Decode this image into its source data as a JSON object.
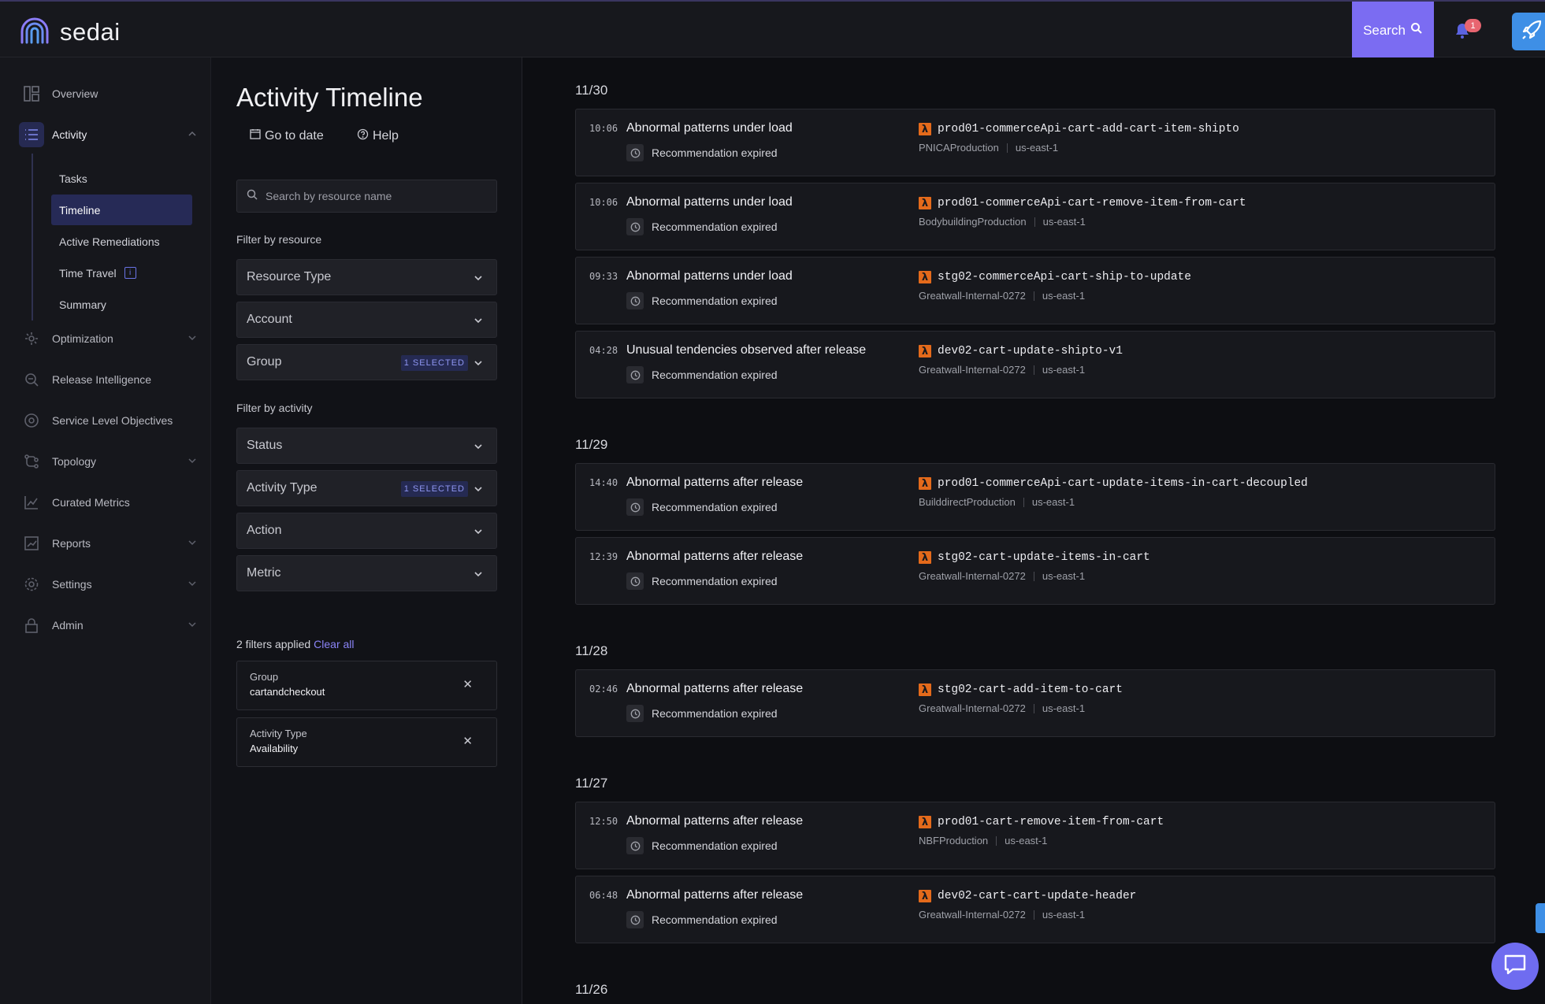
{
  "app": {
    "logo_text": "sedai"
  },
  "topbar": {
    "search_label": "Search",
    "notification_count": "1"
  },
  "sidebar": {
    "items": [
      {
        "label": "Overview",
        "icon": "dashboard-icon"
      },
      {
        "label": "Activity",
        "icon": "list-icon",
        "active": true,
        "expanded": true
      },
      {
        "label": "Optimization",
        "icon": "optimization-icon"
      },
      {
        "label": "Release Intelligence",
        "icon": "release-intelligence-icon"
      },
      {
        "label": "Service Level Objectives",
        "icon": "slo-icon"
      },
      {
        "label": "Topology",
        "icon": "topology-icon"
      },
      {
        "label": "Curated Metrics",
        "icon": "chart-icon"
      },
      {
        "label": "Reports",
        "icon": "reports-icon"
      },
      {
        "label": "Settings",
        "icon": "gear-icon"
      },
      {
        "label": "Admin",
        "icon": "lock-icon"
      }
    ],
    "sub_items": [
      {
        "label": "Tasks"
      },
      {
        "label": "Timeline",
        "active": true
      },
      {
        "label": "Active Remediations"
      },
      {
        "label": "Time Travel",
        "info_icon": true
      },
      {
        "label": "Summary"
      }
    ]
  },
  "filter_panel": {
    "title": "Activity Timeline",
    "go_to_date": "Go to date",
    "help": "Help",
    "search_placeholder": "Search by resource name",
    "filter_by_resource": "Filter by resource",
    "filter_by_activity": "Filter by activity",
    "resource_filters": [
      {
        "label": "Resource Type",
        "badge": ""
      },
      {
        "label": "Account",
        "badge": ""
      },
      {
        "label": "Group",
        "badge": "1 SELECTED"
      }
    ],
    "activity_filters": [
      {
        "label": "Status",
        "badge": ""
      },
      {
        "label": "Activity Type",
        "badge": "1 SELECTED"
      },
      {
        "label": "Action",
        "badge": ""
      },
      {
        "label": "Metric",
        "badge": ""
      }
    ],
    "applied_text": "2 filters applied",
    "clear_all": "Clear all",
    "chips": [
      {
        "key": "Group",
        "value": "cartandcheckout"
      },
      {
        "key": "Activity Type",
        "value": "Availability"
      }
    ]
  },
  "timeline": {
    "groups": [
      {
        "date": "11/30",
        "events": [
          {
            "time": "10:06",
            "title": "Abnormal patterns under load",
            "status": "Recommendation expired",
            "resource": "prod01-commerceApi-cart-add-cart-item-shipto",
            "account": "PNICAProduction",
            "region": "us-east-1"
          },
          {
            "time": "10:06",
            "title": "Abnormal patterns under load",
            "status": "Recommendation expired",
            "resource": "prod01-commerceApi-cart-remove-item-from-cart",
            "account": "BodybuildingProduction",
            "region": "us-east-1"
          },
          {
            "time": "09:33",
            "title": "Abnormal patterns under load",
            "status": "Recommendation expired",
            "resource": "stg02-commerceApi-cart-ship-to-update",
            "account": "Greatwall-Internal-0272",
            "region": "us-east-1"
          },
          {
            "time": "04:28",
            "title": "Unusual tendencies observed after release",
            "status": "Recommendation expired",
            "resource": "dev02-cart-update-shipto-v1",
            "account": "Greatwall-Internal-0272",
            "region": "us-east-1"
          }
        ]
      },
      {
        "date": "11/29",
        "events": [
          {
            "time": "14:40",
            "title": "Abnormal patterns after release",
            "status": "Recommendation expired",
            "resource": "prod01-commerceApi-cart-update-items-in-cart-decoupled",
            "account": "BuilddirectProduction",
            "region": "us-east-1"
          },
          {
            "time": "12:39",
            "title": "Abnormal patterns after release",
            "status": "Recommendation expired",
            "resource": "stg02-cart-update-items-in-cart",
            "account": "Greatwall-Internal-0272",
            "region": "us-east-1"
          }
        ]
      },
      {
        "date": "11/28",
        "events": [
          {
            "time": "02:46",
            "title": "Abnormal patterns after release",
            "status": "Recommendation expired",
            "resource": "stg02-cart-add-item-to-cart",
            "account": "Greatwall-Internal-0272",
            "region": "us-east-1"
          }
        ]
      },
      {
        "date": "11/27",
        "events": [
          {
            "time": "12:50",
            "title": "Abnormal patterns after release",
            "status": "Recommendation expired",
            "resource": "prod01-cart-remove-item-from-cart",
            "account": "NBFProduction",
            "region": "us-east-1"
          },
          {
            "time": "06:48",
            "title": "Abnormal patterns after release",
            "status": "Recommendation expired",
            "resource": "dev02-cart-cart-update-header",
            "account": "Greatwall-Internal-0272",
            "region": "us-east-1"
          }
        ]
      },
      {
        "date": "11/26",
        "events": []
      }
    ]
  },
  "colors": {
    "accent": "#7b6cf2",
    "lambda": "#e46a1b",
    "badge": "#e86570",
    "rocket": "#3e8fe6"
  }
}
